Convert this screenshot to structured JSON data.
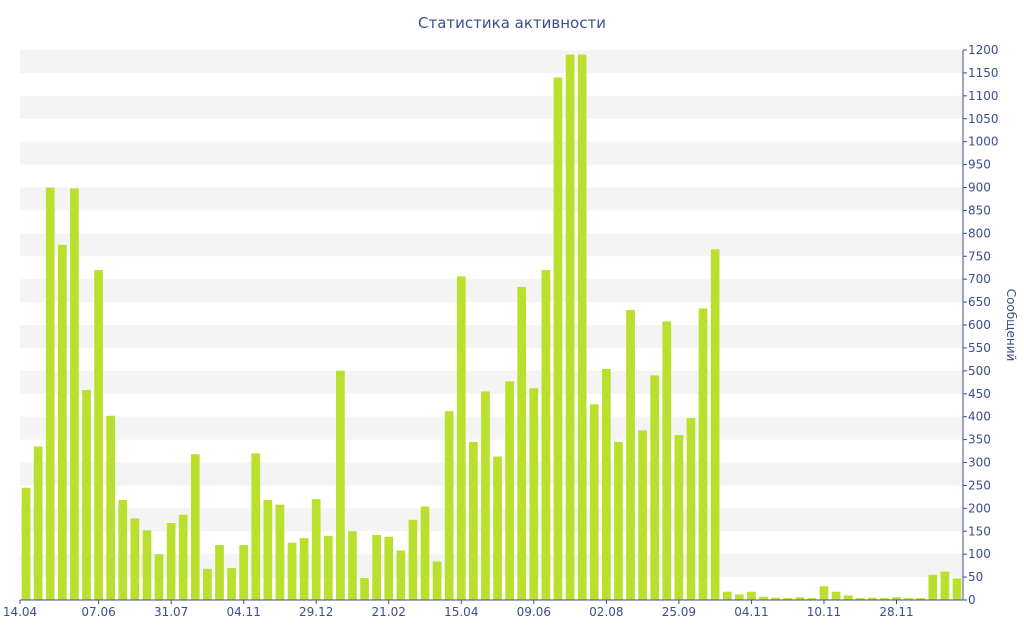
{
  "chart_data": {
    "type": "bar",
    "title": "Статистика активности",
    "xlabel": "",
    "ylabel": "Сообщений",
    "ylim": [
      0,
      1200
    ],
    "ytick_step": 50,
    "grid": "horizontal alternating bands",
    "colors": {
      "bar": "#b9e02c",
      "band": "#f4f4f4",
      "text": "#3d4e8a",
      "axis": "#3d4e8a"
    },
    "x_tick_labels": [
      {
        "index": 0,
        "label": "14.04"
      },
      {
        "index": 6,
        "label": "07.06"
      },
      {
        "index": 12,
        "label": "31.07"
      },
      {
        "index": 18,
        "label": "04.11"
      },
      {
        "index": 24,
        "label": "29.12"
      },
      {
        "index": 30,
        "label": "21.02"
      },
      {
        "index": 36,
        "label": "15.04"
      },
      {
        "index": 42,
        "label": "09.06"
      },
      {
        "index": 48,
        "label": "02.08"
      },
      {
        "index": 54,
        "label": "25.09"
      },
      {
        "index": 60,
        "label": "04.11"
      },
      {
        "index": 66,
        "label": "10.11"
      },
      {
        "index": 72,
        "label": "28.11"
      }
    ],
    "values": [
      245,
      335,
      900,
      775,
      898,
      458,
      720,
      402,
      218,
      178,
      152,
      100,
      168,
      186,
      318,
      68,
      120,
      70,
      120,
      320,
      218,
      208,
      125,
      135,
      220,
      140,
      500,
      150,
      48,
      142,
      138,
      108,
      175,
      204,
      84,
      412,
      706,
      345,
      455,
      313,
      477,
      683,
      462,
      720,
      1140,
      1190,
      1190,
      427,
      504,
      345,
      633,
      370,
      490,
      608,
      360,
      397,
      636,
      765,
      18,
      12,
      18,
      7,
      5,
      4,
      6,
      4,
      30,
      18,
      10,
      4,
      5,
      4,
      6,
      4,
      4,
      55,
      62,
      47
    ]
  }
}
